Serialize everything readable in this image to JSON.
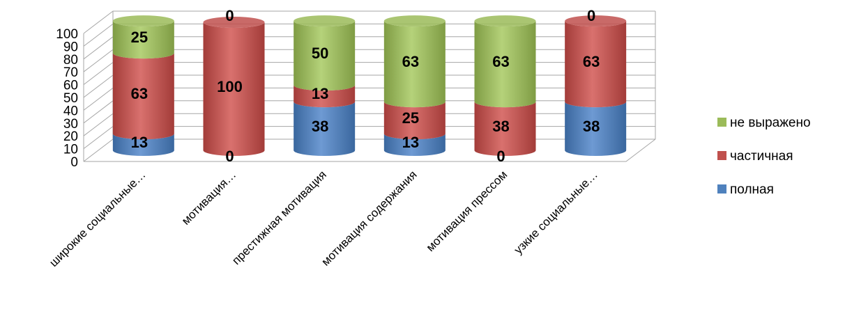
{
  "chart_data": {
    "type": "bar",
    "stacked": true,
    "style": "3d-cylinder",
    "categories": [
      "широкие социальные…",
      "мотивация…",
      "престижная мотивация",
      "мотивация содержания",
      "мотивация прессом",
      "узкие социальные…"
    ],
    "series": [
      {
        "name": "полная",
        "color": "#4f81bd",
        "values": [
          13,
          0,
          38,
          13,
          0,
          38
        ]
      },
      {
        "name": "частичная",
        "color": "#c0504d",
        "values": [
          63,
          100,
          13,
          25,
          38,
          63
        ]
      },
      {
        "name": "не выражено",
        "color": "#9bbb59",
        "values": [
          25,
          0,
          50,
          63,
          63,
          0
        ]
      }
    ],
    "yticks": [
      "0",
      "10",
      "20",
      "30",
      "40",
      "50",
      "60",
      "70",
      "80",
      "90",
      "100"
    ],
    "ylim": [
      0,
      100
    ],
    "grid": true,
    "legend": "right"
  }
}
